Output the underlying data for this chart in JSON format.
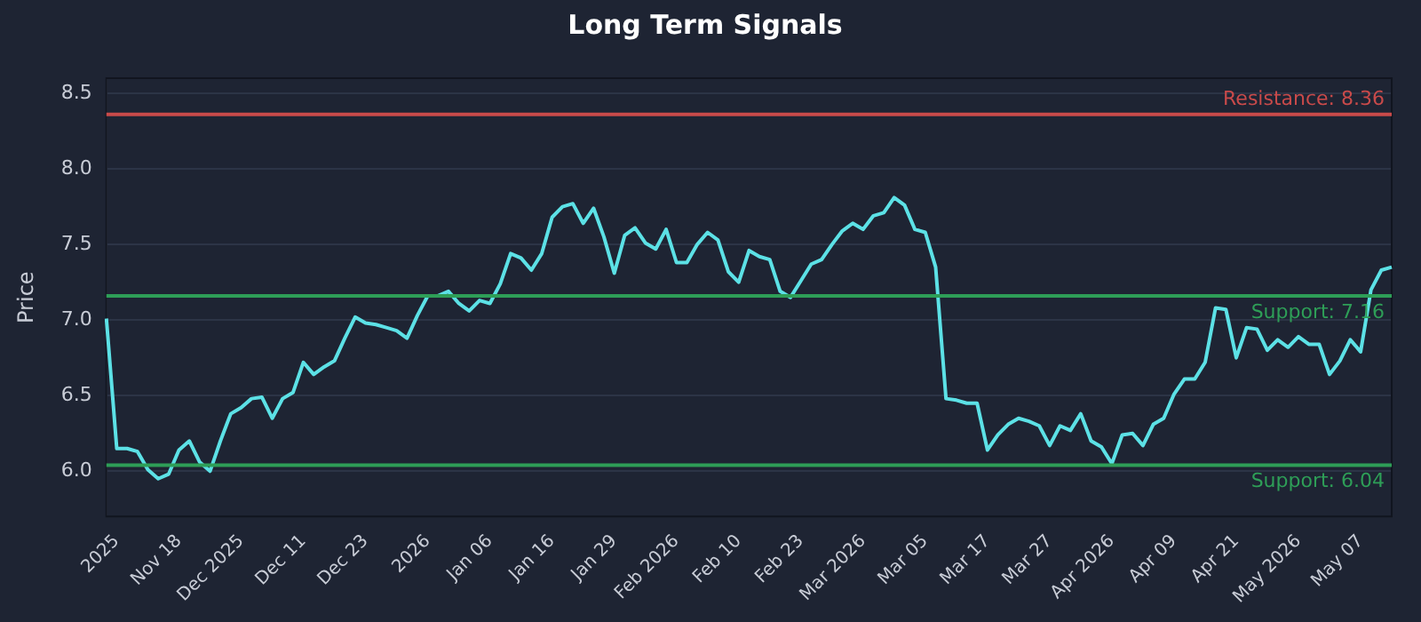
{
  "chart_data": {
    "type": "line",
    "title": "Long Term Signals",
    "ylabel": "Price",
    "categories": [
      null,
      "2025",
      null,
      null,
      null,
      null,
      null,
      "Nov 18",
      null,
      null,
      null,
      null,
      null,
      "Dec 2025",
      null,
      null,
      null,
      null,
      null,
      "Dec 11",
      null,
      null,
      null,
      null,
      null,
      "Dec 23",
      null,
      null,
      null,
      null,
      null,
      "2026",
      null,
      null,
      null,
      null,
      null,
      "Jan 06",
      null,
      null,
      null,
      null,
      null,
      "Jan 16",
      null,
      null,
      null,
      null,
      null,
      "Jan 29",
      null,
      null,
      null,
      null,
      null,
      "Feb 2026",
      null,
      null,
      null,
      null,
      null,
      "Feb 10",
      null,
      null,
      null,
      null,
      null,
      "Feb 23",
      null,
      null,
      null,
      null,
      null,
      "Mar 2026",
      null,
      null,
      null,
      null,
      null,
      "Mar 05",
      null,
      null,
      null,
      null,
      null,
      "Mar 17",
      null,
      null,
      null,
      null,
      null,
      "Mar 27",
      null,
      null,
      null,
      null,
      null,
      "Apr 2026",
      null,
      null,
      null,
      null,
      null,
      "Apr 09",
      null,
      null,
      null,
      null,
      null,
      "Apr 21",
      null,
      null,
      null,
      null,
      null,
      "May 2026",
      null,
      null,
      null,
      null,
      null,
      "May 07",
      null,
      null,
      null
    ],
    "series": [
      {
        "color": "#5ce1e6",
        "values": [
          7.01,
          6.15,
          6.15,
          6.13,
          6.01,
          5.95,
          5.98,
          6.14,
          6.2,
          6.06,
          6.0,
          6.2,
          6.38,
          6.42,
          6.48,
          6.49,
          6.35,
          6.48,
          6.52,
          6.72,
          6.64,
          6.69,
          6.73,
          6.88,
          7.02,
          6.98,
          6.97,
          6.95,
          6.93,
          6.88,
          7.03,
          7.16,
          7.16,
          7.19,
          7.11,
          7.06,
          7.13,
          7.11,
          7.24,
          7.44,
          7.41,
          7.33,
          7.44,
          7.68,
          7.75,
          7.77,
          7.64,
          7.74,
          7.55,
          7.31,
          7.56,
          7.61,
          7.51,
          7.47,
          7.6,
          7.38,
          7.38,
          7.5,
          7.58,
          7.53,
          7.32,
          7.25,
          7.46,
          7.42,
          7.4,
          7.19,
          7.15,
          7.26,
          7.37,
          7.4,
          7.5,
          7.59,
          7.64,
          7.6,
          7.69,
          7.71,
          7.81,
          7.76,
          7.6,
          7.58,
          7.35,
          6.48,
          6.47,
          6.45,
          6.45,
          6.14,
          6.24,
          6.31,
          6.35,
          6.33,
          6.3,
          6.17,
          6.3,
          6.27,
          6.38,
          6.2,
          6.16,
          6.05,
          6.24,
          6.25,
          6.17,
          6.31,
          6.35,
          6.51,
          6.61,
          6.61,
          6.72,
          7.08,
          7.07,
          6.75,
          6.95,
          6.94,
          6.8,
          6.87,
          6.82,
          6.89,
          6.84,
          6.84,
          6.64,
          6.73,
          6.87,
          6.79,
          7.2,
          7.33,
          7.35
        ]
      }
    ],
    "ylim": [
      5.7,
      8.6
    ],
    "yticks": [
      {
        "value": 6,
        "label": "6.0"
      },
      6.5,
      {
        "value": 7,
        "label": "7.0"
      },
      7.5,
      {
        "value": 8,
        "label": "8.0"
      },
      8.5
    ],
    "ref_lines": [
      {
        "axis": "y",
        "value": 8.36,
        "label": "Resistance: 8.36",
        "color": "#c94a4a"
      },
      {
        "axis": "y",
        "value": 7.16,
        "label": "Support: 7.16",
        "color": "#2e9e57"
      },
      {
        "axis": "y",
        "value": 6.04,
        "label": "Support: 6.04",
        "color": "#2e9e57"
      }
    ],
    "grid": "y",
    "legend": false,
    "marker": "none",
    "line_style": "solid"
  }
}
